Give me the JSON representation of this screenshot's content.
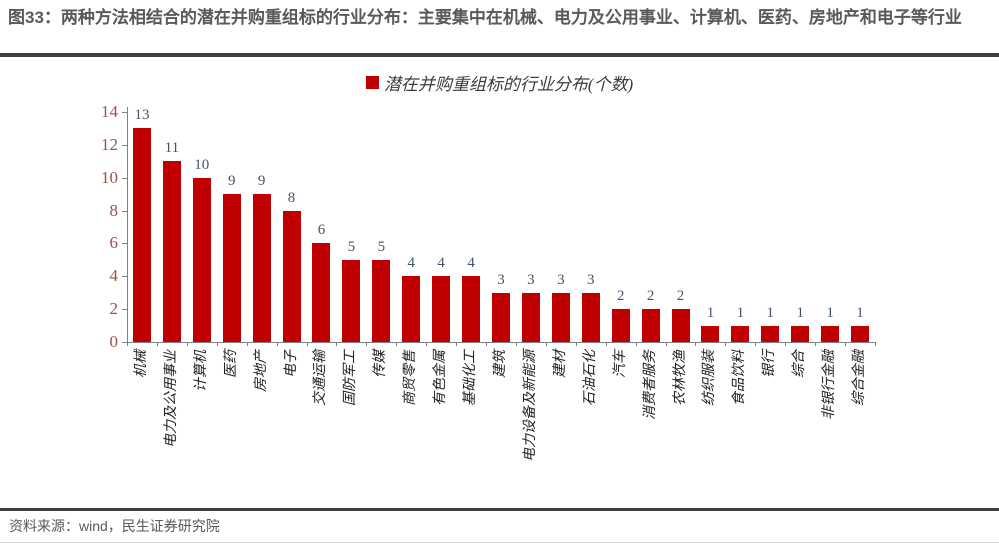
{
  "figure": {
    "title": "图33：两种方法相结合的潜在并购重组标的行业分布：主要集中在机械、电力及公用事业、计算机、医药、房地产和电子等行业"
  },
  "legend": {
    "label": "潜在并购重组标的行业分布(个数)"
  },
  "footer": {
    "source": "资料来源：wind，民生证券研究院"
  },
  "colors": {
    "bar": "#c00000",
    "axis": "#808080",
    "y_tick_label": "#9c5148",
    "data_label": "#44546a",
    "title_text": "#595959",
    "divider": "#3f3f3f",
    "footer_text": "#595959",
    "category_label": "#1f1f1f"
  },
  "chart_data": {
    "type": "bar",
    "title": "潜在并购重组标的行业分布(个数)",
    "categories": [
      "机械",
      "电力及公用事业",
      "计算机",
      "医药",
      "房地产",
      "电子",
      "交通运输",
      "国防军工",
      "传媒",
      "商贸零售",
      "有色金属",
      "基础化工",
      "建筑",
      "电力设备及新能源",
      "建材",
      "石油石化",
      "汽车",
      "消费者服务",
      "农林牧渔",
      "纺织服装",
      "食品饮料",
      "银行",
      "综合",
      "非银行金融",
      "综合金融"
    ],
    "values": [
      13,
      11,
      10,
      9,
      9,
      8,
      6,
      5,
      5,
      4,
      4,
      4,
      3,
      3,
      3,
      3,
      2,
      2,
      2,
      1,
      1,
      1,
      1,
      1,
      1
    ],
    "xlabel": "",
    "ylabel": "",
    "ylim": [
      0,
      14
    ],
    "yticks": [
      0,
      2,
      4,
      6,
      8,
      10,
      12,
      14
    ],
    "grid": false,
    "data_labels": true,
    "legend_position": "top-center",
    "category_label_rotation_deg": -90
  }
}
